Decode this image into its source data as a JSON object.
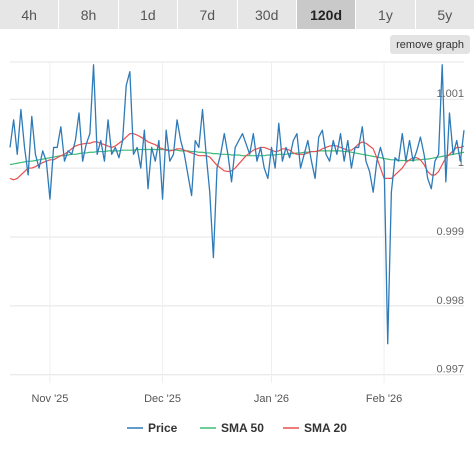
{
  "tabs": [
    {
      "label": "4h"
    },
    {
      "label": "8h"
    },
    {
      "label": "1d"
    },
    {
      "label": "7d"
    },
    {
      "label": "30d"
    },
    {
      "label": "120d",
      "active": true
    },
    {
      "label": "1y"
    },
    {
      "label": "5y"
    }
  ],
  "remove_graph_label": "remove graph",
  "chart_data": {
    "type": "line",
    "xlabels": [
      "Nov '25",
      "Dec '25",
      "Jan '26",
      "Feb '26"
    ],
    "yticks": [
      {
        "label": "1.001",
        "value": 1.001
      },
      {
        "label": "1",
        "value": 1.0
      },
      {
        "label": "0.999",
        "value": 0.999
      },
      {
        "label": "0.998",
        "value": 0.998
      },
      {
        "label": "0.997",
        "value": 0.997
      }
    ],
    "ylim": [
      0.99688,
      1.00154
    ],
    "x_count": 126,
    "x_label_positions": [
      11,
      42,
      72,
      103
    ],
    "grid": true,
    "legend": "bottom",
    "colors": {
      "price": "#2e7bb8",
      "sma50": "#3dbb74",
      "sma20": "#e8504f",
      "grid": "#e4e4e4"
    },
    "series": [
      {
        "name": "Price",
        "key": "price",
        "values": [
          1.0003,
          1.0007,
          1.0002,
          1.00085,
          1.0003,
          0.9999,
          1.00075,
          1.0002,
          1.0,
          1.00025,
          1.0001,
          0.99955,
          1.0003,
          1.0003,
          1.0006,
          1.0001,
          1.00025,
          1.0002,
          1.0004,
          1.0008,
          1.0001,
          1.00035,
          1.0005,
          1.0015,
          1.0002,
          1.0004,
          1.0001,
          1.0007,
          1.0002,
          1.0003,
          1.00015,
          1.0004,
          1.0012,
          1.0014,
          1.0002,
          1.0003,
          1.0,
          1.00055,
          0.9997,
          1.0003,
          1.0001,
          1.0004,
          0.99955,
          1.00055,
          1.0001,
          1.0002,
          1.0007,
          1.0004,
          1.0002,
          0.9999,
          0.9996,
          1.0004,
          1.0003,
          1.00085,
          1.0002,
          0.99965,
          0.9987,
          1.0,
          1.0002,
          1.0005,
          1.0002,
          0.9998,
          1.0003,
          1.0004,
          1.0005,
          1.00035,
          1.0002,
          1.0005,
          1.0001,
          1.0003,
          1.0,
          0.99985,
          1.0003,
          1.0,
          1.00065,
          1.0001,
          1.0003,
          1.00015,
          1.0004,
          1.0005,
          1.0,
          1.0002,
          1.0004,
          1.0001,
          0.99985,
          1.00045,
          1.00055,
          1.0002,
          1.0001,
          1.0004,
          1.0002,
          1.0005,
          1.0001,
          1.0004,
          1.0,
          1.0003,
          1.0003,
          1.0006,
          1.0001,
          0.99995,
          0.99965,
          1.0001,
          1.0003,
          1.0001,
          0.99745,
          0.99965,
          1.00015,
          1.0001,
          1.0005,
          1.0001,
          1.0004,
          1.0001,
          1.00025,
          1.00045,
          1.0002,
          0.99985,
          0.9997,
          1.0001,
          1.0002,
          1.0015,
          0.9998,
          1.0008,
          1.0002,
          1.0004,
          1.0001,
          1.00055
        ]
      },
      {
        "name": "SMA 50",
        "key": "sma50",
        "values": [
          1.00005,
          1.00006,
          1.00007,
          1.00008,
          1.00009,
          1.0001,
          1.0001,
          1.00011,
          1.00012,
          1.00013,
          1.00014,
          1.00015,
          1.00016,
          1.00017,
          1.00018,
          1.00018,
          1.00019,
          1.0002,
          1.0002,
          1.00021,
          1.00022,
          1.00022,
          1.00023,
          1.00023,
          1.00024,
          1.00024,
          1.00024,
          1.00025,
          1.00025,
          1.00025,
          1.00025,
          1.00026,
          1.00026,
          1.00026,
          1.00026,
          1.00027,
          1.00027,
          1.00027,
          1.00027,
          1.00027,
          1.00027,
          1.00027,
          1.00027,
          1.00027,
          1.00026,
          1.00026,
          1.00026,
          1.00025,
          1.00025,
          1.00025,
          1.00024,
          1.00024,
          1.00023,
          1.00023,
          1.00022,
          1.00022,
          1.00021,
          1.00021,
          1.0002,
          1.0002,
          1.0002,
          1.00019,
          1.00019,
          1.00019,
          1.00018,
          1.00018,
          1.00018,
          1.00018,
          1.00018,
          1.00018,
          1.00018,
          1.00019,
          1.00019,
          1.00019,
          1.0002,
          1.0002,
          1.0002,
          1.00021,
          1.00021,
          1.00022,
          1.00022,
          1.00023,
          1.00023,
          1.00024,
          1.00024,
          1.00025,
          1.00025,
          1.00025,
          1.00025,
          1.00025,
          1.00025,
          1.00025,
          1.00024,
          1.00024,
          1.00023,
          1.00022,
          1.00021,
          1.0002,
          1.00019,
          1.00018,
          1.00017,
          1.00016,
          1.00015,
          1.00014,
          1.00013,
          1.00012,
          1.00012,
          1.00011,
          1.00011,
          1.00011,
          1.00011,
          1.00011,
          1.00012,
          1.00012,
          1.00013,
          1.00013,
          1.00014,
          1.00015,
          1.00016,
          1.00017,
          1.00018,
          1.00019,
          1.0002,
          1.00021,
          1.00022,
          1.00023
        ]
      },
      {
        "name": "SMA 20",
        "key": "sma20",
        "values": [
          0.99985,
          0.99983,
          0.99985,
          0.9999,
          0.99995,
          1.0,
          1.0,
          1.00002,
          1.00005,
          1.00008,
          1.0001,
          1.00012,
          1.00012,
          1.00015,
          1.00018,
          1.0002,
          1.00024,
          1.00028,
          1.00032,
          1.00034,
          1.00035,
          1.00036,
          1.00036,
          1.00038,
          1.00038,
          1.00036,
          1.00034,
          1.00032,
          1.0003,
          1.00032,
          1.00036,
          1.0004,
          1.00045,
          1.0005,
          1.0005,
          1.00048,
          1.00045,
          1.00042,
          1.00038,
          1.00036,
          1.00034,
          1.0003,
          1.00028,
          1.00026,
          1.00025,
          1.00026,
          1.00028,
          1.00028,
          1.00026,
          1.00024,
          1.00022,
          1.0002,
          1.00018,
          1.00018,
          1.00018,
          1.00016,
          1.0001,
          1.00004,
          1.0,
          0.99996,
          0.99995,
          0.99996,
          1.0,
          1.00006,
          1.00012,
          1.00018,
          1.00022,
          1.00026,
          1.00028,
          1.0003,
          1.0003,
          1.00028,
          1.00026,
          1.00024,
          1.00025,
          1.00028,
          1.00028,
          1.00026,
          1.00022,
          1.0002,
          1.0002,
          1.0002,
          1.00022,
          1.00024,
          1.00024,
          1.00025,
          1.00028,
          1.0003,
          1.00032,
          1.00033,
          1.00032,
          1.0003,
          1.00028,
          1.00026,
          1.00026,
          1.0003,
          1.00035,
          1.00038,
          1.00036,
          1.00032,
          1.00028,
          1.00015,
          1.0,
          0.99985,
          0.99985,
          0.99985,
          0.9999,
          0.99995,
          1.0,
          1.00008,
          1.00012,
          1.00015,
          1.00015,
          1.00012,
          1.00005,
          0.99995,
          0.9999,
          0.9999,
          0.99995,
          1.00005,
          1.00015,
          1.0002,
          1.00025,
          1.0003,
          1.0003,
          1.00032
        ]
      }
    ]
  }
}
